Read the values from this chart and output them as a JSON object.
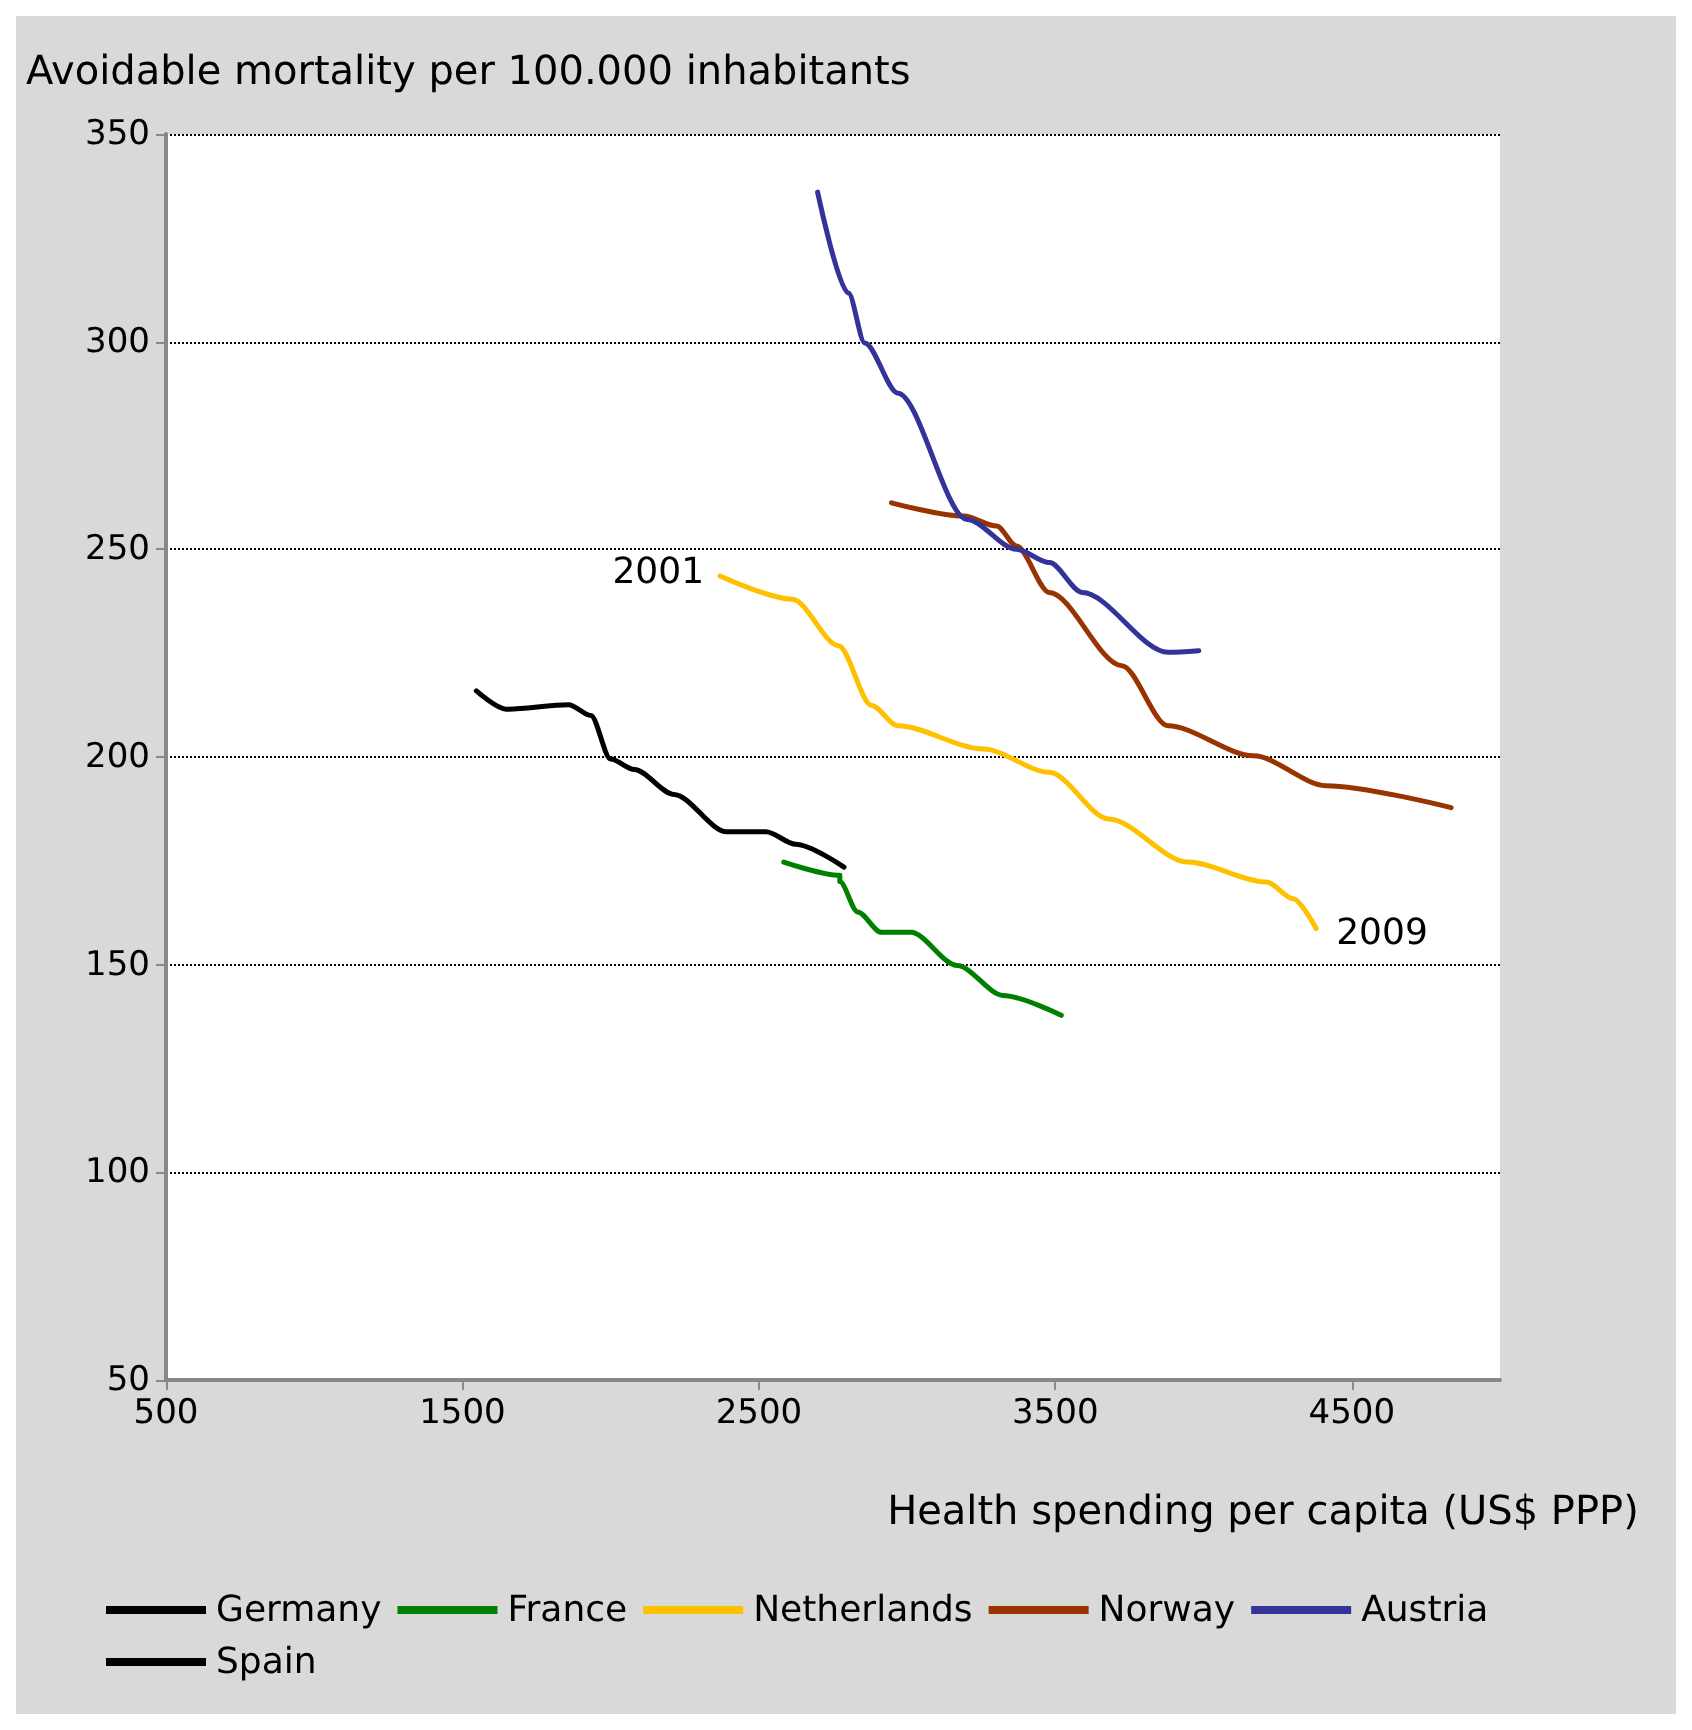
{
  "chart_data": {
    "type": "line",
    "ylabel": "Avoidable mortality per 100.000 inhabitants",
    "xlabel": "Health spending per capita (US$ PPP)",
    "xlim": [
      500,
      5000
    ],
    "xticks": [
      500,
      1500,
      2500,
      3500,
      4500
    ],
    "ylim": [
      50,
      350
    ],
    "yticks": [
      50,
      100,
      150,
      200,
      250,
      300,
      350
    ],
    "grid": "y",
    "legend": "bottom",
    "marker": "none",
    "line_style": "solid",
    "annotations": [
      {
        "text": "2001",
        "x": 2369,
        "y": 243.6
      },
      {
        "text": "2009",
        "x": 4380,
        "y": 158.7
      }
    ],
    "series": [
      {
        "name": "Germany",
        "color": "#000000"
      },
      {
        "name": "France",
        "color": "#008000",
        "x": [
          2584,
          2773,
          2773,
          2833,
          2913,
          3013,
          3169,
          3324,
          3520
        ],
        "values": [
          174.7,
          171.5,
          170,
          162.7,
          157.8,
          157.8,
          149.8,
          142.6,
          137.8
        ]
      },
      {
        "name": "Netherlands",
        "color": "#ffc000",
        "x": [
          2369,
          2613,
          2769,
          2880,
          2969,
          3258,
          3480,
          3680,
          3947,
          4213,
          4302,
          4380
        ],
        "values": [
          243.6,
          238,
          226.8,
          212.4,
          207.5,
          201.9,
          196.3,
          185.1,
          174.7,
          169.9,
          165.9,
          158.7
        ]
      },
      {
        "name": "Norway",
        "color": "#993300",
        "x": [
          2947,
          3191,
          3302,
          3369,
          3480,
          3724,
          3880,
          4169,
          4413,
          4835
        ],
        "values": [
          261.2,
          258,
          255.6,
          250.8,
          239.6,
          222,
          207.5,
          200.3,
          193.1,
          187.8
        ]
      },
      {
        "name": "Austria",
        "color": "#333399",
        "x": [
          2698,
          2802,
          2857,
          2969,
          3202,
          3369,
          3480,
          3591,
          3880,
          3984
        ],
        "values": [
          336,
          311.7,
          299.7,
          287.6,
          257.2,
          250,
          246.8,
          239.6,
          225.2,
          225.6
        ]
      },
      {
        "name": "Spain",
        "color": "#000000",
        "x": [
          1547,
          1647,
          1858,
          1933,
          2000,
          2080,
          2213,
          2391,
          2524,
          2624,
          2787
        ],
        "values": [
          215.9,
          211.5,
          212.6,
          210,
          199.5,
          197,
          191,
          182,
          182,
          179,
          173.5
        ]
      }
    ]
  }
}
